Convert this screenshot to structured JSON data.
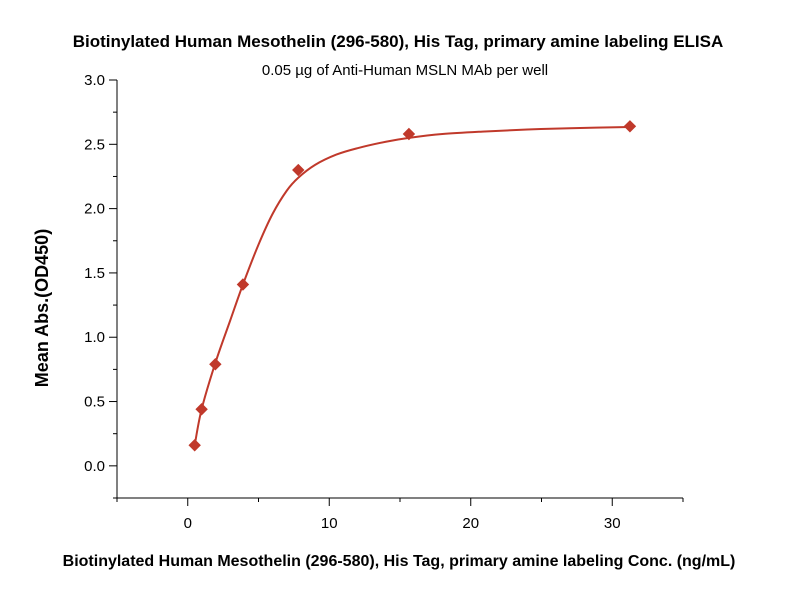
{
  "chart_data": {
    "type": "scatter",
    "title": "Biotinylated Human Mesothelin (296-580), His Tag, primary amine labeling ELISA",
    "subtitle": "0.05 µg of Anti-Human MSLN MAb per well",
    "xlabel": "Biotinylated Human Mesothelin (296-580), His Tag, primary amine labeling Conc. (ng/mL)",
    "ylabel": "Mean Abs.(OD450)",
    "xlim": [
      -5,
      35
    ],
    "ylim": [
      -0.25,
      3.0
    ],
    "x_ticks": [
      0,
      10,
      20,
      30
    ],
    "x_tick_labels": [
      "0",
      "10",
      "20",
      "30"
    ],
    "y_ticks": [
      0.0,
      0.5,
      1.0,
      1.5,
      2.0,
      2.5,
      3.0
    ],
    "y_tick_labels": [
      "0.0",
      "0.5",
      "1.0",
      "1.5",
      "2.0",
      "2.5",
      "3.0"
    ],
    "grid": false,
    "series": [
      {
        "marker": "diamond",
        "color": "#c0392b",
        "x": [
          0.49,
          0.98,
          1.95,
          3.9,
          7.81,
          15.63,
          31.25
        ],
        "y": [
          0.16,
          0.44,
          0.79,
          1.41,
          2.3,
          2.58,
          2.64
        ]
      }
    ],
    "fit_curve": {
      "color": "#c0392b",
      "x": [
        0.49,
        0.98,
        1.95,
        3.0,
        3.9,
        5.0,
        6.0,
        7.0,
        7.81,
        9.0,
        10.5,
        12.0,
        14.0,
        15.63,
        18.0,
        21.0,
        24.0,
        27.0,
        31.25
      ],
      "y": [
        0.16,
        0.44,
        0.8,
        1.13,
        1.41,
        1.72,
        1.96,
        2.14,
        2.24,
        2.34,
        2.42,
        2.47,
        2.52,
        2.55,
        2.58,
        2.6,
        2.615,
        2.625,
        2.635
      ]
    }
  }
}
